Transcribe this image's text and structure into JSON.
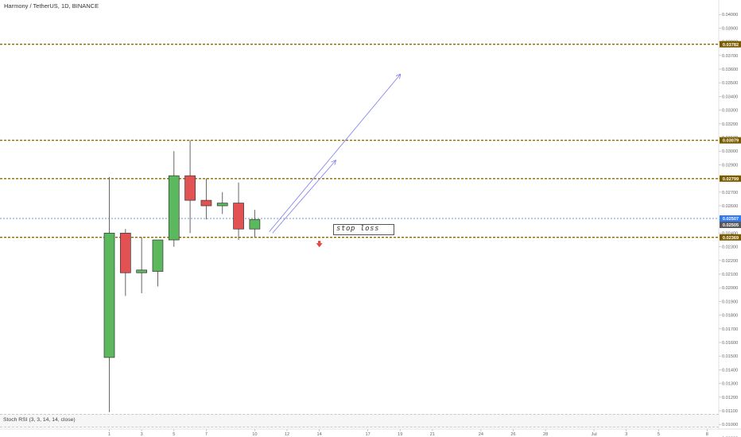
{
  "header": {
    "title": "Harmony / TetherUS, 1D, BINANCE"
  },
  "indicator": {
    "label": "Stoch RSI (3, 3, 14, 14, close)"
  },
  "annotation": {
    "stop_loss_text": "stop loss",
    "arrow_icon": "arrow-down-icon",
    "arrow_color": "#e0463c"
  },
  "colors": {
    "up": "#5cb85c",
    "down": "#e35252",
    "level_line": "#8a6a00",
    "level_badge": "#7a5c00",
    "price_badge": "#3179f5",
    "trend_arrow": "#7b7bf0"
  },
  "chart_data": {
    "type": "candlestick",
    "title": "Harmony / TetherUS, 1D, BINANCE",
    "ylim": [
      0.0085,
      0.0405
    ],
    "y_ticks": [
      "0.04000",
      "0.03900",
      "0.03800",
      "0.03700",
      "0.03600",
      "0.03500",
      "0.03400",
      "0.03300",
      "0.03200",
      "0.03100",
      "0.03000",
      "0.02900",
      "0.02800",
      "0.02700",
      "0.02600",
      "0.02500",
      "0.02400",
      "0.02300",
      "0.02200",
      "0.02100",
      "0.02000",
      "0.01900",
      "0.01800",
      "0.01700",
      "0.01600",
      "0.01500",
      "0.01400",
      "0.01300",
      "0.01200",
      "0.01100",
      "0.01000",
      "0.00900"
    ],
    "x_ticks": [
      {
        "label": "1",
        "day": 1
      },
      {
        "label": "3",
        "day": 3
      },
      {
        "label": "5",
        "day": 5
      },
      {
        "label": "7",
        "day": 7
      },
      {
        "label": "10",
        "day": 10
      },
      {
        "label": "12",
        "day": 12
      },
      {
        "label": "14",
        "day": 14
      },
      {
        "label": "17",
        "day": 17
      },
      {
        "label": "19",
        "day": 19
      },
      {
        "label": "21",
        "day": 21
      },
      {
        "label": "24",
        "day": 24
      },
      {
        "label": "26",
        "day": 26
      },
      {
        "label": "28",
        "day": 28
      },
      {
        "label": "Jul",
        "day": 31
      },
      {
        "label": "3",
        "day": 33
      },
      {
        "label": "5",
        "day": 35
      },
      {
        "label": "8",
        "day": 38
      }
    ],
    "candles": [
      {
        "day": 1,
        "open": 0.0149,
        "high": 0.0281,
        "low": 0.0109,
        "close": 0.024
      },
      {
        "day": 2,
        "open": 0.024,
        "high": 0.0243,
        "low": 0.0194,
        "close": 0.0211
      },
      {
        "day": 3,
        "open": 0.0211,
        "high": 0.0237,
        "low": 0.0196,
        "close": 0.0213
      },
      {
        "day": 4,
        "open": 0.0212,
        "high": 0.0234,
        "low": 0.0201,
        "close": 0.0235
      },
      {
        "day": 5,
        "open": 0.0235,
        "high": 0.03,
        "low": 0.023,
        "close": 0.0282
      },
      {
        "day": 6,
        "open": 0.0282,
        "high": 0.0308,
        "low": 0.024,
        "close": 0.0264
      },
      {
        "day": 7,
        "open": 0.0264,
        "high": 0.028,
        "low": 0.025,
        "close": 0.026
      },
      {
        "day": 8,
        "open": 0.026,
        "high": 0.027,
        "low": 0.0254,
        "close": 0.0262
      },
      {
        "day": 9,
        "open": 0.0262,
        "high": 0.0277,
        "low": 0.0235,
        "close": 0.0243
      },
      {
        "day": 10,
        "open": 0.0243,
        "high": 0.0257,
        "low": 0.0237,
        "close": 0.025
      }
    ],
    "levels": [
      {
        "value": 0.03782,
        "label": "0.03782"
      },
      {
        "value": 0.03079,
        "label": "0.03079"
      },
      {
        "value": 0.02799,
        "label": "0.02799"
      },
      {
        "value": 0.02369,
        "label": "0.02369"
      }
    ],
    "current_price": {
      "value": 0.02507,
      "label": "0.02507"
    },
    "price_badge_2": {
      "value": 0.02505,
      "label": "0.02505"
    },
    "trend_arrows": [
      {
        "from": [
          10.9,
          0.0241
        ],
        "to": [
          19.0,
          0.0356
        ]
      },
      {
        "from": [
          11.1,
          0.024
        ],
        "to": [
          15.0,
          0.0293
        ]
      }
    ],
    "stop_loss": {
      "day": 14,
      "value": 0.0232
    }
  }
}
